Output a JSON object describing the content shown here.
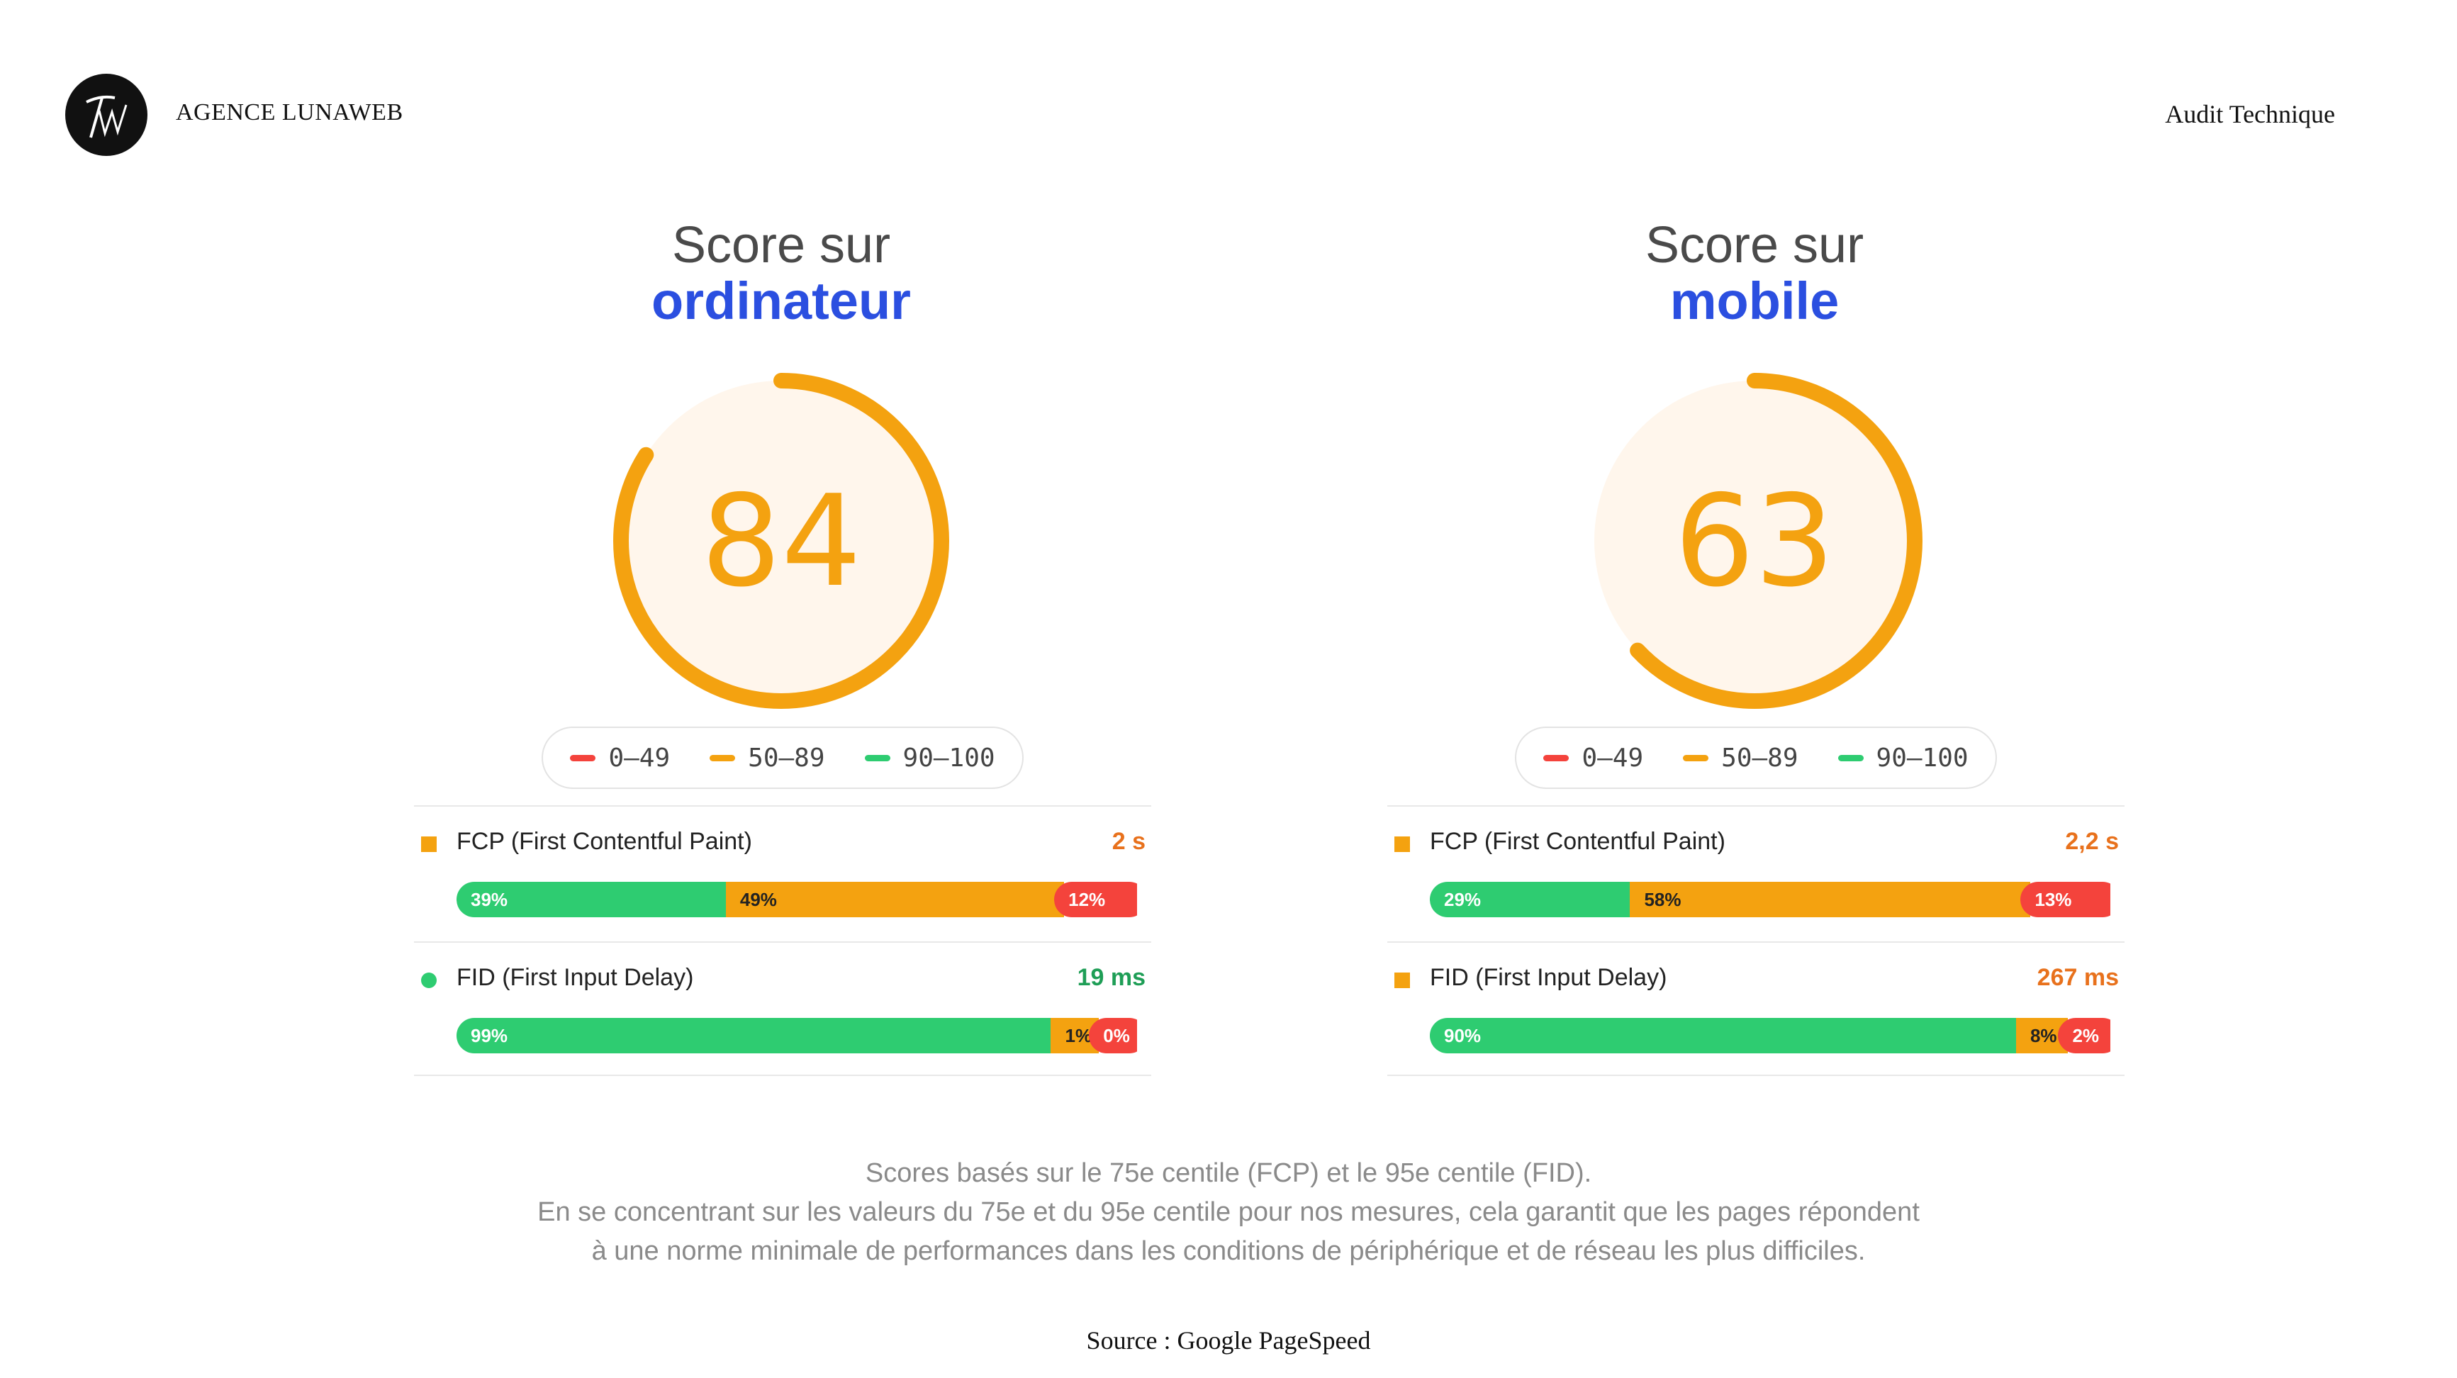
{
  "header": {
    "logo_text": "LW",
    "agency_name": "AGENCE LUNAWEB",
    "section_title": "Audit Technique"
  },
  "colors": {
    "accent_blue": "#2b4fe0",
    "score_orange": "#f4a210",
    "good_green": "#2ecc71",
    "poor_red": "#f4433c"
  },
  "legend": {
    "poor": "0–49",
    "average": "50–89",
    "good": "90–100"
  },
  "desktop": {
    "title_line1": "Score sur",
    "title_line2": "ordinateur",
    "score": "84",
    "score_value": 84,
    "fcp": {
      "name": "FCP (First Contentful Paint)",
      "value": "2 s",
      "marker": "orange-square-icon",
      "segments": [
        {
          "label": "39%",
          "pct": 39,
          "color": "green"
        },
        {
          "label": "49%",
          "pct": 49,
          "color": "orange"
        },
        {
          "label": "12%",
          "pct": 12,
          "color": "red"
        }
      ]
    },
    "fid": {
      "name": "FID (First Input Delay)",
      "value": "19 ms",
      "marker": "green-circle-icon",
      "segments": [
        {
          "label": "99%",
          "pct": 99,
          "color": "green"
        },
        {
          "label": "1%",
          "pct": 1,
          "color": "orange"
        },
        {
          "label": "0%",
          "pct": 0,
          "color": "red"
        }
      ]
    }
  },
  "mobile": {
    "title_line1": "Score sur",
    "title_line2": "mobile",
    "score": "63",
    "score_value": 63,
    "fcp": {
      "name": "FCP (First Contentful Paint)",
      "value": "2,2 s",
      "marker": "orange-square-icon",
      "segments": [
        {
          "label": "29%",
          "pct": 29,
          "color": "green"
        },
        {
          "label": "58%",
          "pct": 58,
          "color": "orange"
        },
        {
          "label": "13%",
          "pct": 13,
          "color": "red"
        }
      ]
    },
    "fid": {
      "name": "FID (First Input Delay)",
      "value": "267 ms",
      "marker": "orange-square-icon",
      "segments": [
        {
          "label": "90%",
          "pct": 90,
          "color": "green"
        },
        {
          "label": "8%",
          "pct": 8,
          "color": "orange"
        },
        {
          "label": "2%",
          "pct": 2,
          "color": "red"
        }
      ]
    }
  },
  "footnote": {
    "line1": "Scores basés sur le 75e centile (FCP) et le 95e centile (FID).",
    "line2": "En se concentrant sur les valeurs du 75e et du 95e centile pour nos mesures, cela garantit que les pages répondent",
    "line3": "à une norme minimale de performances dans les conditions de périphérique et de réseau les plus difficiles."
  },
  "source": "Source : Google PageSpeed"
}
